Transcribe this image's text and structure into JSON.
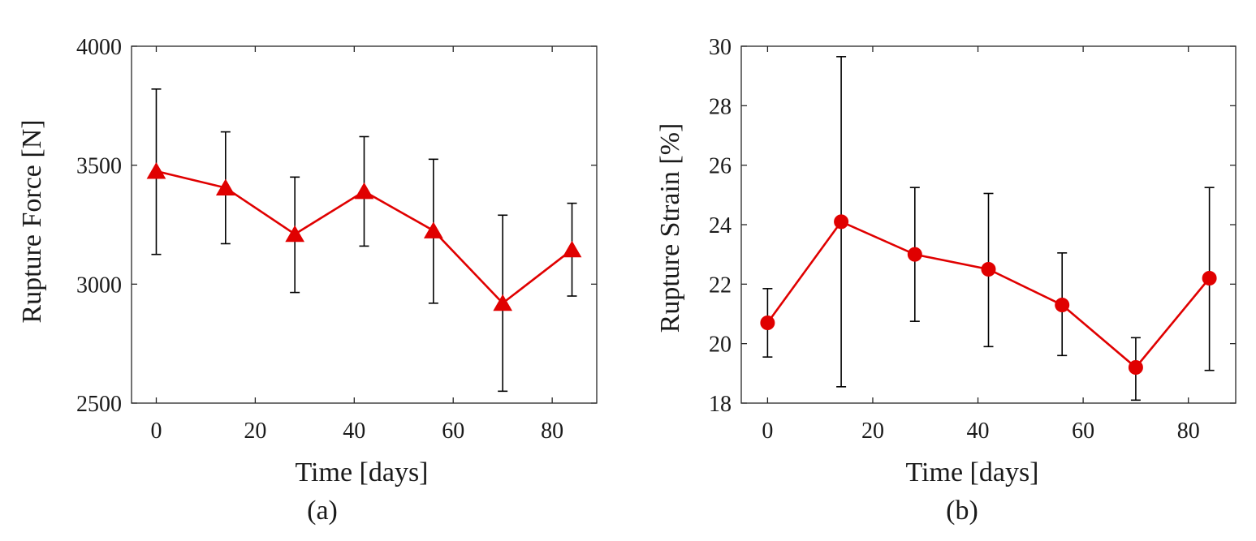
{
  "chart_data": [
    {
      "id": "a",
      "type": "line",
      "caption": "(a)",
      "xlabel": "Time [days]",
      "ylabel": "Rupture Force [N]",
      "xlim": [
        -5,
        89
      ],
      "ylim": [
        2500,
        4000
      ],
      "xticks": [
        0,
        20,
        40,
        60,
        80
      ],
      "yticks": [
        2500,
        3000,
        3500,
        4000
      ],
      "grid": false,
      "marker": "triangle",
      "color": "#e00000",
      "series": [
        {
          "name": "Rupture Force",
          "x": [
            0,
            14,
            28,
            42,
            56,
            70,
            84
          ],
          "y": [
            3475,
            3405,
            3210,
            3390,
            3225,
            2920,
            3145
          ],
          "err_low": [
            3125,
            3170,
            2965,
            3160,
            2920,
            2550,
            2950
          ],
          "err_high": [
            3820,
            3640,
            3450,
            3620,
            3525,
            3290,
            3340
          ]
        }
      ]
    },
    {
      "id": "b",
      "type": "line",
      "caption": "(b)",
      "xlabel": "Time [days]",
      "ylabel": "Rupture Strain [%]",
      "xlim": [
        -5,
        89
      ],
      "ylim": [
        18,
        30
      ],
      "xticks": [
        0,
        20,
        40,
        60,
        80
      ],
      "yticks": [
        18,
        20,
        22,
        24,
        26,
        28,
        30
      ],
      "grid": false,
      "marker": "circle",
      "color": "#e00000",
      "series": [
        {
          "name": "Rupture Strain",
          "x": [
            0,
            14,
            28,
            42,
            56,
            70,
            84
          ],
          "y": [
            20.7,
            24.1,
            23.0,
            22.5,
            21.3,
            19.2,
            22.2
          ],
          "err_low": [
            19.55,
            18.55,
            20.75,
            19.9,
            19.6,
            18.1,
            19.1
          ],
          "err_high": [
            21.85,
            29.65,
            25.25,
            25.05,
            23.05,
            20.2,
            25.25
          ]
        }
      ]
    }
  ]
}
